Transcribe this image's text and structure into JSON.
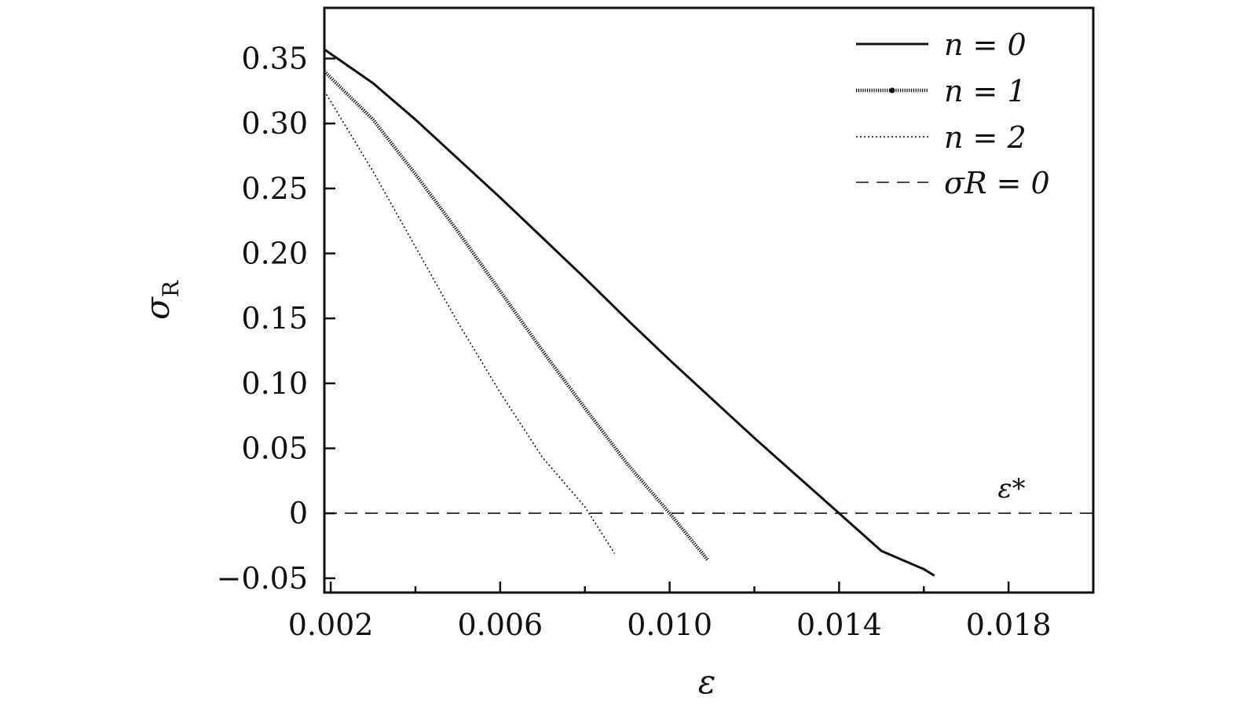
{
  "chart_data": {
    "type": "line",
    "xlabel": "ε",
    "ylabel": "σ",
    "ylabel_sub": "R",
    "xlim": [
      0.00185,
      0.02
    ],
    "ylim": [
      -0.061,
      0.389
    ],
    "xticks": [
      0.002,
      0.006,
      0.01,
      0.014,
      0.018
    ],
    "xtick_labels": [
      "0.002",
      "0.006",
      "0.010",
      "0.014",
      "0.018"
    ],
    "xminor": [
      0.004,
      0.008,
      0.012,
      0.016
    ],
    "yticks": [
      -0.05,
      0,
      0.05,
      0.1,
      0.15,
      0.2,
      0.25,
      0.3,
      0.35
    ],
    "ytick_labels": [
      "−0.05",
      "0",
      "0.05",
      "0.10",
      "0.15",
      "0.20",
      "0.25",
      "0.30",
      "0.35"
    ],
    "grid": false,
    "legend_position": "top-right",
    "series": [
      {
        "name": "n = 0",
        "style": "solid",
        "x": [
          0.00185,
          0.003,
          0.004,
          0.005,
          0.006,
          0.007,
          0.008,
          0.009,
          0.01,
          0.011,
          0.012,
          0.013,
          0.014,
          0.015,
          0.016,
          0.01625
        ],
        "y": [
          0.357,
          0.331,
          0.303,
          0.273,
          0.243,
          0.212,
          0.181,
          0.149,
          0.118,
          0.088,
          0.058,
          0.029,
          0.0,
          -0.029,
          -0.043,
          -0.048
        ]
      },
      {
        "name": "n = 1",
        "style": "dotted-marker",
        "x": [
          0.00185,
          0.003,
          0.004,
          0.005,
          0.006,
          0.007,
          0.008,
          0.009,
          0.01,
          0.0109
        ],
        "y": [
          0.34,
          0.303,
          0.261,
          0.217,
          0.171,
          0.125,
          0.081,
          0.038,
          0.0,
          -0.036
        ]
      },
      {
        "name": "n = 2",
        "style": "dotted",
        "x": [
          0.00185,
          0.003,
          0.004,
          0.005,
          0.006,
          0.007,
          0.008,
          0.0087
        ],
        "y": [
          0.325,
          0.263,
          0.205,
          0.147,
          0.093,
          0.043,
          0.005,
          -0.031
        ]
      },
      {
        "name": "σR = 0",
        "style": "dashed",
        "x": [
          0.00185,
          0.02
        ],
        "y": [
          0,
          0
        ]
      }
    ],
    "annotations": [
      {
        "text": "ε*",
        "x": 0.019,
        "y": 0.013
      }
    ]
  }
}
